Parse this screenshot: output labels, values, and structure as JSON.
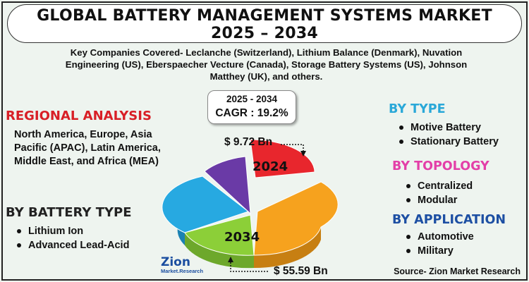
{
  "title": {
    "line1": "GLOBAL BATTERY MANAGEMENT SYSTEMS MARKET",
    "line2": "2025 – 2034"
  },
  "companies": "Key Companies Covered- Leclanche (Switzerland), Lithium Balance (Denmark), Nuvation Engineering (US), Eberspaecher Vecture (Canada), Storage Battery Systems (US), Johnson Matthey (UK), and others.",
  "cagr": {
    "period": "2025 - 2034",
    "value": "CAGR : 19.2%"
  },
  "regional": {
    "heading": "REGIONAL ANALYSIS",
    "text": "North America, Europe, Asia Pacific (APAC), Latin America, Middle East, and Africa (MEA)"
  },
  "battery_type": {
    "heading": "BY BATTERY TYPE",
    "items": [
      "Lithium Ion",
      "Advanced Lead-Acid"
    ]
  },
  "by_type": {
    "heading": "BY TYPE",
    "items": [
      "Motive Battery",
      "Stationary Battery"
    ]
  },
  "by_topology": {
    "heading": "BY TOPOLOGY",
    "items": [
      "Centralized",
      "Modular"
    ]
  },
  "by_application": {
    "heading": "BY APPLICATION",
    "items": [
      "Automotive",
      "Military"
    ]
  },
  "pie": {
    "label_start": "2024",
    "label_end": "2034",
    "value_start": "$ 9.72 Bn",
    "value_end": "$ 55.59 Bn",
    "colors": [
      "#e8262d",
      "#f6a21e",
      "#8ccf38",
      "#27a9e1",
      "#6a3aa6"
    ]
  },
  "logo": {
    "name": "Zion",
    "sub": "Market.Research"
  },
  "source": "Source- Zion Market Research"
}
